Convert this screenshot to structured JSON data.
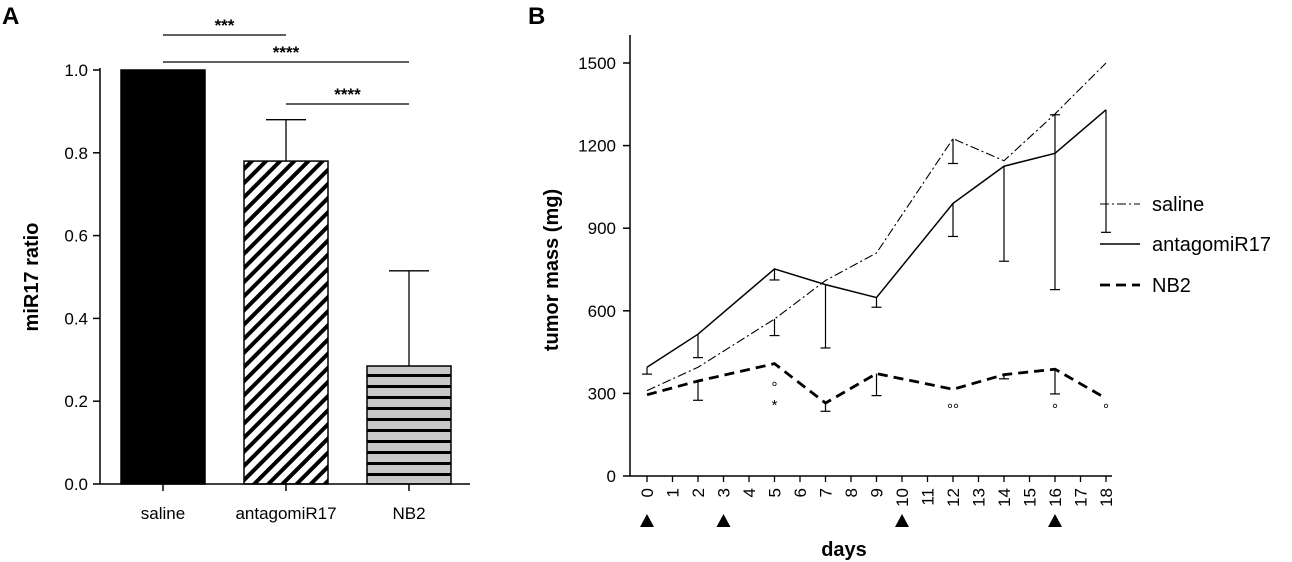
{
  "chart_data": [
    {
      "panel_label": "A",
      "type": "bar",
      "categories": [
        "saline",
        "antagomiR17",
        "NB2"
      ],
      "values": [
        1.0,
        0.78,
        0.285
      ],
      "error_upper": [
        0.0,
        0.1,
        0.23
      ],
      "fills": [
        "solid-black",
        "diagonal-hatch",
        "horizontal-stripes"
      ],
      "ylabel": "miR17 ratio",
      "ylim": [
        0,
        1.0
      ],
      "yticks": [
        0.0,
        0.2,
        0.4,
        0.6,
        0.8,
        1.0
      ],
      "ytick_labels": [
        "0.0",
        "0.2",
        "0.4",
        "0.6",
        "0.8",
        "1.0"
      ],
      "significance": [
        {
          "from": 0,
          "to": 1,
          "label": "***"
        },
        {
          "from": 0,
          "to": 2,
          "label": "****"
        },
        {
          "from": 1,
          "to": 2,
          "label": "****"
        }
      ]
    },
    {
      "panel_label": "B",
      "type": "line",
      "xlabel": "days",
      "ylabel": "tumor mass (mg)",
      "x_categories": [
        "0",
        "1",
        "2",
        "3",
        "4",
        "5",
        "6",
        "7",
        "8",
        "9",
        "10",
        "11",
        "12",
        "13",
        "14",
        "15",
        "16",
        "17",
        "18"
      ],
      "ylim": [
        0,
        1600
      ],
      "yticks": [
        0,
        300,
        600,
        900,
        1200,
        1500
      ],
      "ytick_labels": [
        "0",
        "300",
        "600",
        "900",
        "1200",
        "1500"
      ],
      "treatment_days": [
        0,
        3,
        10,
        16
      ],
      "series": [
        {
          "name": "saline",
          "style": "dash-dot",
          "x": [
            0,
            2,
            5,
            7,
            9,
            12,
            14,
            16,
            18
          ],
          "y": [
            310,
            395,
            570,
            710,
            810,
            1225,
            1145,
            1315,
            1500
          ],
          "err_low": [
            0,
            0,
            60,
            0,
            0,
            90,
            0,
            0,
            0
          ],
          "err_high": [
            0,
            0,
            0,
            0,
            0,
            0,
            0,
            0,
            0
          ]
        },
        {
          "name": "antagomiR17",
          "style": "solid",
          "x": [
            0,
            2,
            5,
            7,
            9,
            12,
            14,
            16,
            18
          ],
          "y": [
            395,
            515,
            752,
            695,
            648,
            990,
            1125,
            1172,
            1330
          ],
          "err_low": [
            25,
            85,
            40,
            230,
            35,
            120,
            345,
            495,
            445
          ],
          "err_high": [
            0,
            0,
            0,
            0,
            0,
            0,
            0,
            140,
            0
          ]
        },
        {
          "name": "NB2",
          "style": "bold-dash",
          "x": [
            0,
            2,
            5,
            7,
            9,
            12,
            14,
            16,
            18
          ],
          "y": [
            295,
            345,
            408,
            265,
            372,
            315,
            368,
            388,
            282
          ],
          "err_low": [
            0,
            70,
            0,
            30,
            80,
            0,
            15,
            90,
            0
          ],
          "err_high": [
            0,
            0,
            0,
            0,
            0,
            0,
            0,
            0,
            0
          ]
        }
      ],
      "annotations": [
        {
          "x": 5,
          "y": 305,
          "text": "°"
        },
        {
          "x": 5,
          "y": 240,
          "text": "*"
        },
        {
          "x": 12,
          "y": 225,
          "text": "°°"
        },
        {
          "x": 16,
          "y": 225,
          "text": "°"
        },
        {
          "x": 18,
          "y": 225,
          "text": "°"
        }
      ]
    }
  ]
}
